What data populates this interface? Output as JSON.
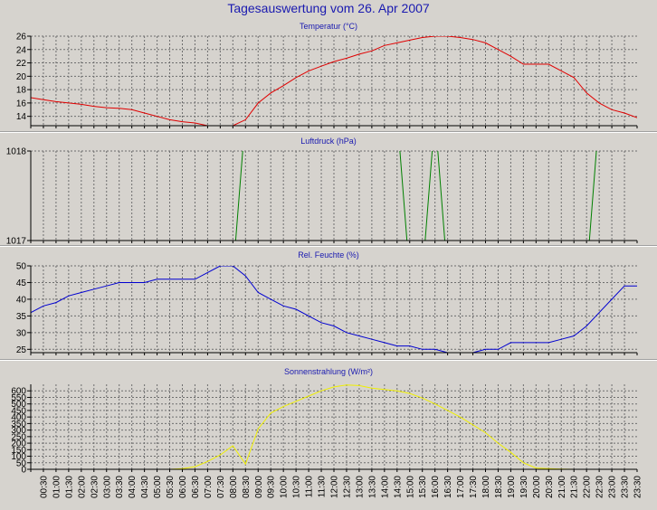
{
  "window": {
    "title": "Tagesauswertung vom 26. Apr 2007"
  },
  "colors": {
    "background": "#d6d3ce",
    "title": "#1a1ab0",
    "grid": "#6e6e6e",
    "temperature": "#e00000",
    "pressure": "#008000",
    "humidity": "#0000d0",
    "radiation": "#f0f000"
  },
  "chart_data": [
    {
      "type": "line",
      "title": "Temperatur (°C)",
      "ylim": [
        12.6,
        26
      ],
      "yticks": [
        14,
        16,
        18,
        20,
        22,
        24,
        26
      ],
      "grid": true,
      "xlim": [
        0,
        24
      ],
      "series": [
        {
          "color": "#e00000",
          "x": [
            0,
            0.5,
            1,
            1.5,
            2,
            2.5,
            3,
            3.5,
            4,
            4.5,
            5,
            5.5,
            6,
            6.5,
            7,
            7.5,
            8,
            8.5,
            9,
            9.5,
            10,
            10.5,
            11,
            11.5,
            12,
            12.5,
            13,
            13.5,
            14,
            14.5,
            15,
            15.5,
            16,
            16.5,
            17,
            17.5,
            18,
            18.5,
            19,
            19.5,
            20,
            20.5,
            21,
            21.5,
            22,
            22.5,
            23,
            23.5,
            24
          ],
          "y": [
            16.8,
            16.5,
            16.2,
            16.0,
            15.8,
            15.5,
            15.3,
            15.2,
            15.0,
            14.5,
            14.0,
            13.5,
            13.2,
            13.0,
            12.6,
            12.6,
            12.6,
            13.5,
            16.0,
            17.5,
            18.6,
            19.8,
            20.8,
            21.5,
            22.2,
            22.7,
            23.3,
            23.8,
            24.6,
            25.0,
            25.4,
            25.8,
            26.0,
            26.0,
            25.8,
            25.5,
            25.0,
            24.0,
            23.0,
            21.8,
            21.8,
            21.8,
            20.8,
            19.8,
            17.5,
            16.0,
            15.0,
            14.5,
            13.8
          ]
        }
      ]
    },
    {
      "type": "line",
      "title": "Luftdruck (hPa)",
      "ylim": [
        1017,
        1018
      ],
      "yticks": [
        1017,
        1018
      ],
      "grid": true,
      "xlim": [
        0,
        24
      ],
      "series": [
        {
          "color": "#008000",
          "x": [
            0,
            8,
            8.5,
            9,
            9.5,
            10,
            11,
            12,
            13,
            14,
            14.5,
            15,
            15.5,
            16,
            16.5,
            17,
            17.5,
            18,
            19,
            20,
            21,
            22,
            22.5,
            23,
            23.5,
            24
          ],
          "y": [
            1016.6,
            1016.6,
            1018.4,
            1018.4,
            1018.4,
            1018.4,
            1018.4,
            1018.4,
            1018.4,
            1018.4,
            1018.4,
            1016.6,
            1016.6,
            1018.4,
            1016.6,
            1016.6,
            1016.6,
            1016.6,
            1016.6,
            1016.6,
            1016.6,
            1016.6,
            1018.4,
            1018.4,
            1018.4,
            1018.4
          ]
        }
      ]
    },
    {
      "type": "line",
      "title": "Rel. Feuchte (%)",
      "ylim": [
        24,
        50
      ],
      "yticks": [
        25,
        30,
        35,
        40,
        45,
        50
      ],
      "grid": true,
      "xlim": [
        0,
        24
      ],
      "series": [
        {
          "color": "#0000d0",
          "x": [
            0,
            0.5,
            1,
            1.5,
            2,
            2.5,
            3,
            3.5,
            4,
            4.5,
            5,
            5.5,
            6,
            6.5,
            7,
            7.5,
            8,
            8.5,
            9,
            9.5,
            10,
            10.5,
            11,
            11.5,
            12,
            12.5,
            13,
            13.5,
            14,
            14.5,
            15,
            15.5,
            16,
            16.5,
            17,
            17.5,
            18,
            18.5,
            19,
            19.5,
            20,
            20.5,
            21,
            21.5,
            22,
            22.5,
            23,
            23.5,
            24
          ],
          "y": [
            36,
            38,
            39,
            41,
            42,
            43,
            44,
            45,
            45,
            45,
            46,
            46,
            46,
            46,
            48,
            50,
            50,
            47,
            42,
            40,
            38,
            37,
            35,
            33,
            32,
            30,
            29,
            28,
            27,
            26,
            26,
            25,
            25,
            24,
            24,
            24,
            25,
            25,
            27,
            27,
            27,
            27,
            28,
            29,
            32,
            36,
            40,
            44,
            44
          ]
        }
      ]
    },
    {
      "type": "line",
      "title": "Sonnenstrahlung (W/m²)",
      "ylim": [
        0,
        650
      ],
      "yticks": [
        0,
        50,
        100,
        150,
        200,
        250,
        300,
        350,
        400,
        450,
        500,
        550,
        600
      ],
      "grid": true,
      "xlim": [
        0,
        24
      ],
      "series": [
        {
          "color": "#f0f000",
          "x": [
            0,
            5,
            5.5,
            6,
            6.5,
            7,
            7.5,
            8,
            8.5,
            9,
            9.5,
            10,
            10.5,
            11,
            11.5,
            12,
            12.5,
            13,
            13.5,
            14,
            14.5,
            15,
            15.5,
            16,
            16.5,
            17,
            17.5,
            18,
            18.5,
            19,
            19.5,
            20,
            20.5,
            21,
            21.5,
            24
          ],
          "y": [
            0,
            0,
            0,
            5,
            20,
            60,
            110,
            180,
            40,
            310,
            430,
            480,
            520,
            560,
            600,
            630,
            645,
            640,
            620,
            610,
            600,
            580,
            545,
            500,
            450,
            400,
            340,
            280,
            200,
            130,
            50,
            10,
            5,
            2,
            0,
            0
          ]
        }
      ]
    }
  ],
  "x_axis": {
    "tick_labels": [
      "00:30",
      "01:00",
      "01:30",
      "02:00",
      "02:30",
      "03:00",
      "03:30",
      "04:00",
      "04:30",
      "05:00",
      "05:30",
      "06:00",
      "06:30",
      "07:00",
      "07:30",
      "08:00",
      "08:30",
      "09:00",
      "09:30",
      "10:00",
      "10:30",
      "11:00",
      "11:30",
      "12:00",
      "12:30",
      "13:00",
      "13:30",
      "14:00",
      "14:30",
      "15:00",
      "15:30",
      "16:00",
      "16:30",
      "17:00",
      "17:30",
      "18:00",
      "18:30",
      "19:00",
      "19:30",
      "20:00",
      "20:30",
      "21:00",
      "21:30",
      "22:00",
      "22:30",
      "23:00",
      "23:30",
      "23:30"
    ]
  }
}
